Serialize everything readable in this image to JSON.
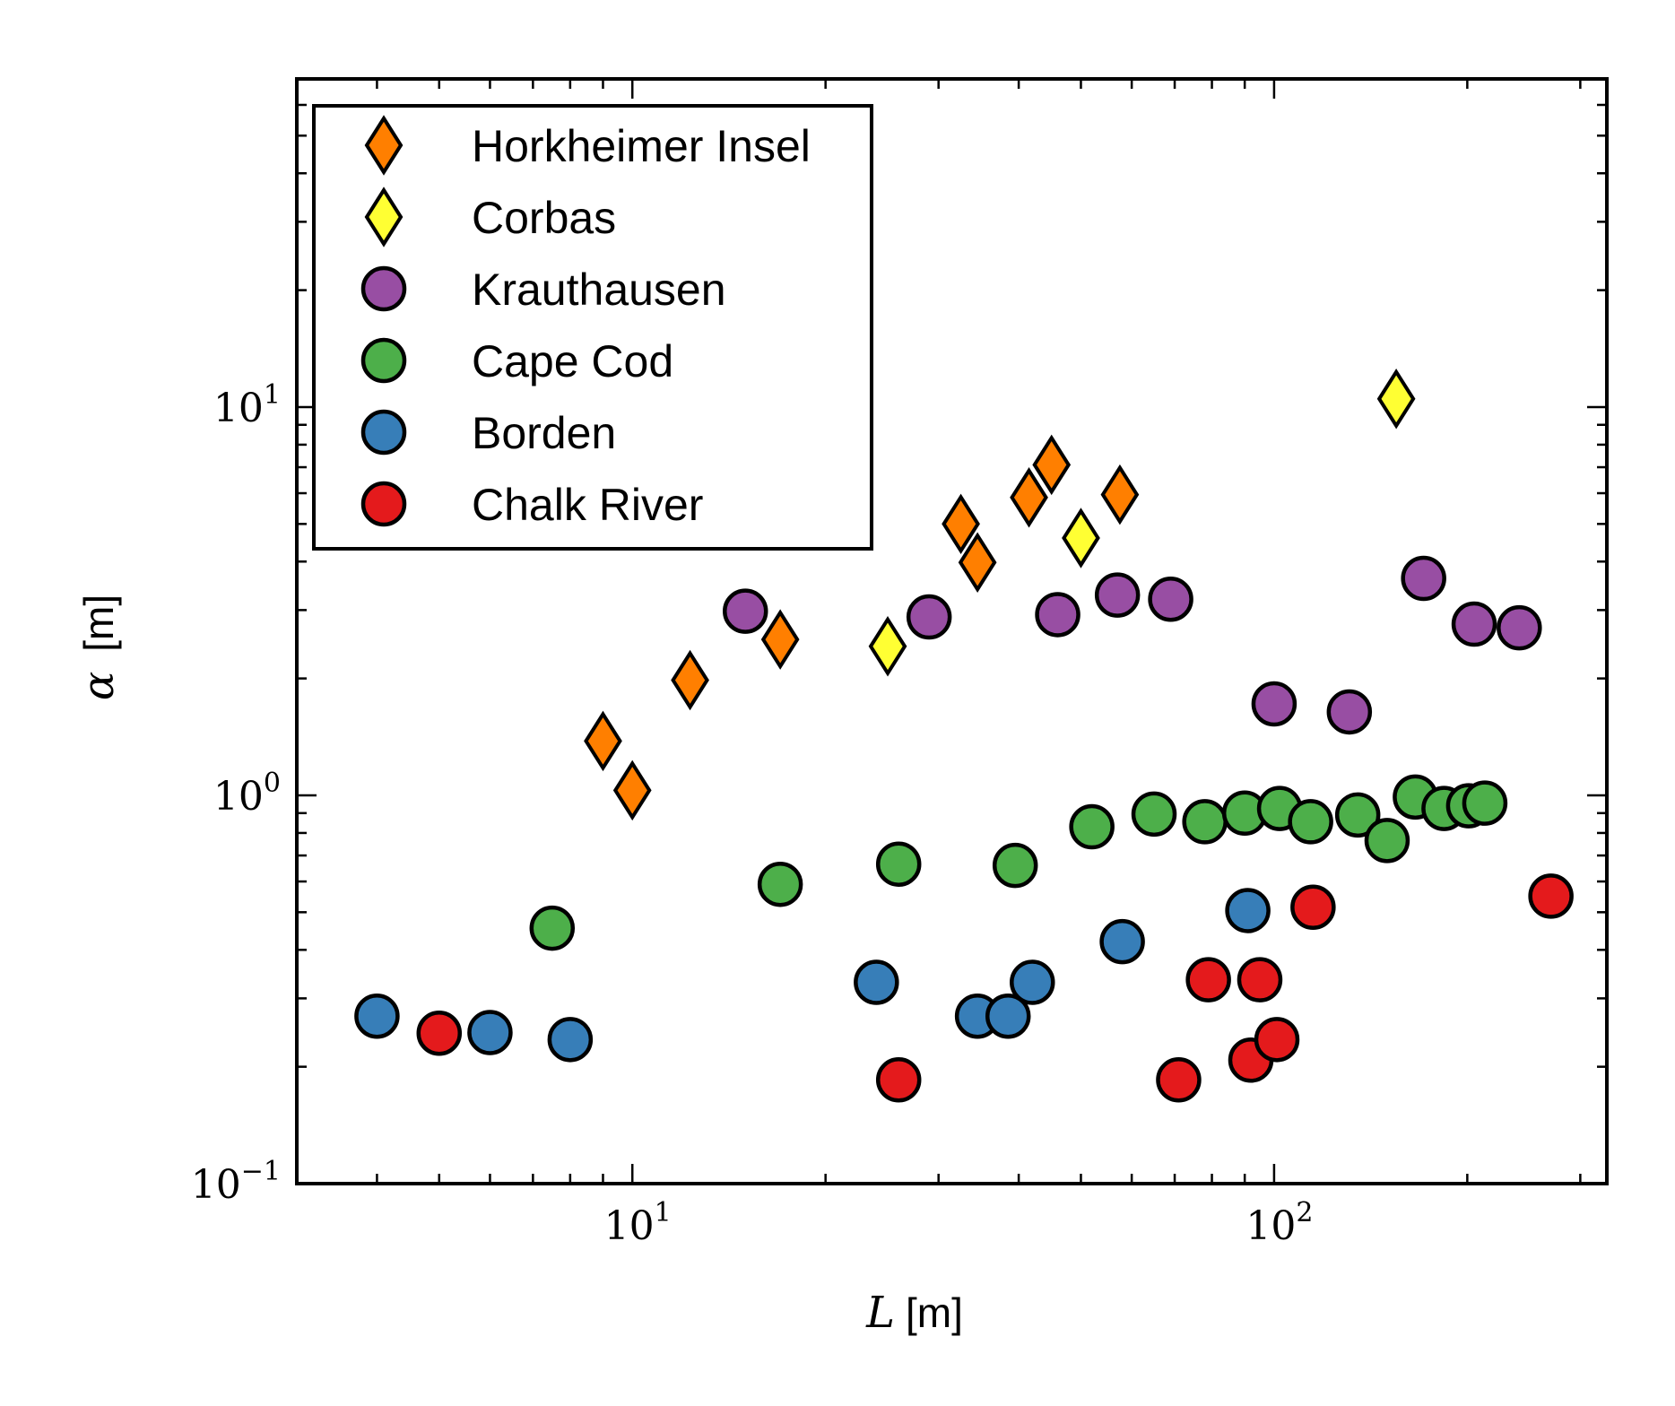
{
  "chart_data": {
    "type": "scatter",
    "x_scale": "log",
    "y_scale": "log",
    "xlim": [
      3.0,
      330
    ],
    "ylim": [
      0.1,
      70
    ],
    "x_ticks": [
      {
        "value": 10,
        "base": "10",
        "exp": "1"
      },
      {
        "value": 100,
        "base": "10",
        "exp": "2"
      }
    ],
    "y_ticks": [
      {
        "value": 0.1,
        "base": "10",
        "exp": "−1"
      },
      {
        "value": 1,
        "base": "10",
        "exp": "0"
      },
      {
        "value": 10,
        "base": "10",
        "exp": "1"
      }
    ],
    "xlabel": {
      "symbol": "L",
      "unit": "[m]"
    },
    "ylabel": {
      "symbol": "α",
      "unit": "[m]"
    },
    "grid": false,
    "legend_position": "top-left",
    "series": [
      {
        "name": "Horkheimer Insel",
        "marker": "diamond",
        "color": "#ff7f00",
        "points": [
          [
            9,
            1.38
          ],
          [
            10,
            1.03
          ],
          [
            12.3,
            1.98
          ],
          [
            17,
            2.52
          ],
          [
            32.5,
            5.0
          ],
          [
            34.5,
            3.98
          ],
          [
            41.5,
            5.85
          ],
          [
            45,
            7.1
          ],
          [
            57.5,
            5.95
          ]
        ]
      },
      {
        "name": "Corbas",
        "marker": "diamond",
        "color": "#ffff33",
        "points": [
          [
            25,
            2.42
          ],
          [
            50,
            4.6
          ],
          [
            155,
            10.5
          ]
        ]
      },
      {
        "name": "Krauthausen",
        "marker": "circle",
        "color": "#984ea3",
        "points": [
          [
            15,
            2.98
          ],
          [
            29,
            2.88
          ],
          [
            46,
            2.92
          ],
          [
            57,
            3.28
          ],
          [
            69,
            3.2
          ],
          [
            100,
            1.72
          ],
          [
            131,
            1.64
          ],
          [
            171,
            3.62
          ],
          [
            205,
            2.76
          ],
          [
            241,
            2.7
          ]
        ]
      },
      {
        "name": "Cape Cod",
        "marker": "circle",
        "color": "#4daf4a",
        "points": [
          [
            7.5,
            0.455
          ],
          [
            17,
            0.59
          ],
          [
            26,
            0.665
          ],
          [
            39.5,
            0.66
          ],
          [
            52,
            0.83
          ],
          [
            65,
            0.895
          ],
          [
            78,
            0.855
          ],
          [
            90,
            0.9
          ],
          [
            102,
            0.925
          ],
          [
            114,
            0.855
          ],
          [
            135,
            0.89
          ],
          [
            150,
            0.765
          ],
          [
            166,
            0.99
          ],
          [
            184,
            0.925
          ],
          [
            201,
            0.94
          ],
          [
            213,
            0.955
          ]
        ]
      },
      {
        "name": "Borden",
        "marker": "circle",
        "color": "#377eb8",
        "points": [
          [
            4,
            0.27
          ],
          [
            6,
            0.245
          ],
          [
            8,
            0.235
          ],
          [
            24,
            0.33
          ],
          [
            34.5,
            0.27
          ],
          [
            38.5,
            0.27
          ],
          [
            42,
            0.33
          ],
          [
            58,
            0.42
          ],
          [
            91,
            0.505
          ]
        ]
      },
      {
        "name": "Chalk River",
        "marker": "circle",
        "color": "#e41a1c",
        "points": [
          [
            5,
            0.244
          ],
          [
            26,
            0.185
          ],
          [
            71,
            0.185
          ],
          [
            79,
            0.335
          ],
          [
            92,
            0.208
          ],
          [
            95,
            0.335
          ],
          [
            101,
            0.235
          ],
          [
            115,
            0.515
          ],
          [
            270,
            0.55
          ]
        ]
      }
    ]
  }
}
